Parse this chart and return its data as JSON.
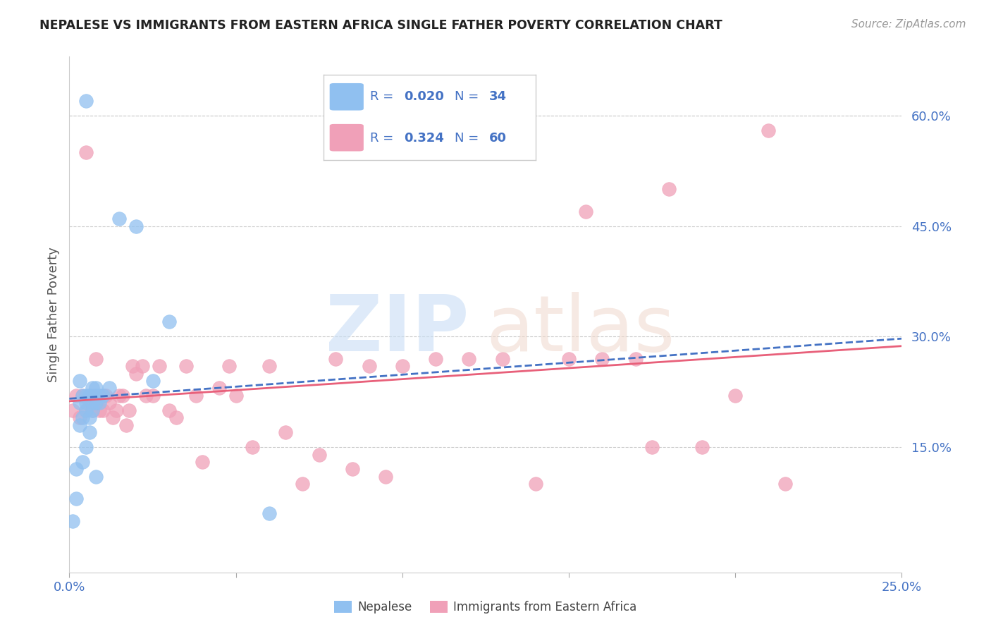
{
  "title": "NEPALESE VS IMMIGRANTS FROM EASTERN AFRICA SINGLE FATHER POVERTY CORRELATION CHART",
  "source": "Source: ZipAtlas.com",
  "ylabel": "Single Father Poverty",
  "xlim": [
    0.0,
    0.25
  ],
  "ylim": [
    -0.02,
    0.68
  ],
  "x_ticks": [
    0.0,
    0.05,
    0.1,
    0.15,
    0.2,
    0.25
  ],
  "x_tick_labels": [
    "0.0%",
    "",
    "",
    "",
    "",
    "25.0%"
  ],
  "y_ticks_right": [
    0.15,
    0.3,
    0.45,
    0.6
  ],
  "y_tick_labels_right": [
    "15.0%",
    "30.0%",
    "45.0%",
    "60.0%"
  ],
  "grid_color": "#cccccc",
  "background_color": "#ffffff",
  "nepalese_color": "#90C0F0",
  "eastern_africa_color": "#F0A0B8",
  "nepalese_line_color": "#4472C4",
  "eastern_africa_line_color": "#E8607A",
  "nepalese_x": [
    0.001,
    0.002,
    0.002,
    0.003,
    0.003,
    0.003,
    0.004,
    0.004,
    0.004,
    0.005,
    0.005,
    0.005,
    0.005,
    0.006,
    0.006,
    0.006,
    0.006,
    0.007,
    0.007,
    0.007,
    0.008,
    0.008,
    0.008,
    0.009,
    0.009,
    0.01,
    0.012,
    0.015,
    0.02,
    0.025,
    0.03,
    0.005,
    0.008,
    0.06
  ],
  "nepalese_y": [
    0.05,
    0.08,
    0.12,
    0.18,
    0.21,
    0.24,
    0.19,
    0.22,
    0.13,
    0.2,
    0.21,
    0.15,
    0.22,
    0.22,
    0.19,
    0.17,
    0.22,
    0.23,
    0.21,
    0.2,
    0.23,
    0.21,
    0.22,
    0.22,
    0.21,
    0.22,
    0.23,
    0.46,
    0.45,
    0.24,
    0.32,
    0.62,
    0.11,
    0.06
  ],
  "eastern_africa_x": [
    0.001,
    0.002,
    0.003,
    0.004,
    0.005,
    0.005,
    0.006,
    0.007,
    0.007,
    0.008,
    0.008,
    0.009,
    0.01,
    0.01,
    0.011,
    0.012,
    0.013,
    0.014,
    0.015,
    0.016,
    0.017,
    0.018,
    0.019,
    0.02,
    0.022,
    0.023,
    0.025,
    0.027,
    0.03,
    0.032,
    0.035,
    0.038,
    0.04,
    0.045,
    0.048,
    0.05,
    0.055,
    0.06,
    0.065,
    0.07,
    0.075,
    0.08,
    0.085,
    0.09,
    0.095,
    0.1,
    0.11,
    0.12,
    0.13,
    0.14,
    0.15,
    0.155,
    0.16,
    0.17,
    0.175,
    0.18,
    0.19,
    0.2,
    0.21,
    0.215
  ],
  "eastern_africa_y": [
    0.2,
    0.22,
    0.19,
    0.22,
    0.55,
    0.2,
    0.21,
    0.22,
    0.2,
    0.27,
    0.21,
    0.2,
    0.2,
    0.22,
    0.22,
    0.21,
    0.19,
    0.2,
    0.22,
    0.22,
    0.18,
    0.2,
    0.26,
    0.25,
    0.26,
    0.22,
    0.22,
    0.26,
    0.2,
    0.19,
    0.26,
    0.22,
    0.13,
    0.23,
    0.26,
    0.22,
    0.15,
    0.26,
    0.17,
    0.1,
    0.14,
    0.27,
    0.12,
    0.26,
    0.11,
    0.26,
    0.27,
    0.27,
    0.27,
    0.1,
    0.27,
    0.47,
    0.27,
    0.27,
    0.15,
    0.5,
    0.15,
    0.22,
    0.58,
    0.1
  ]
}
